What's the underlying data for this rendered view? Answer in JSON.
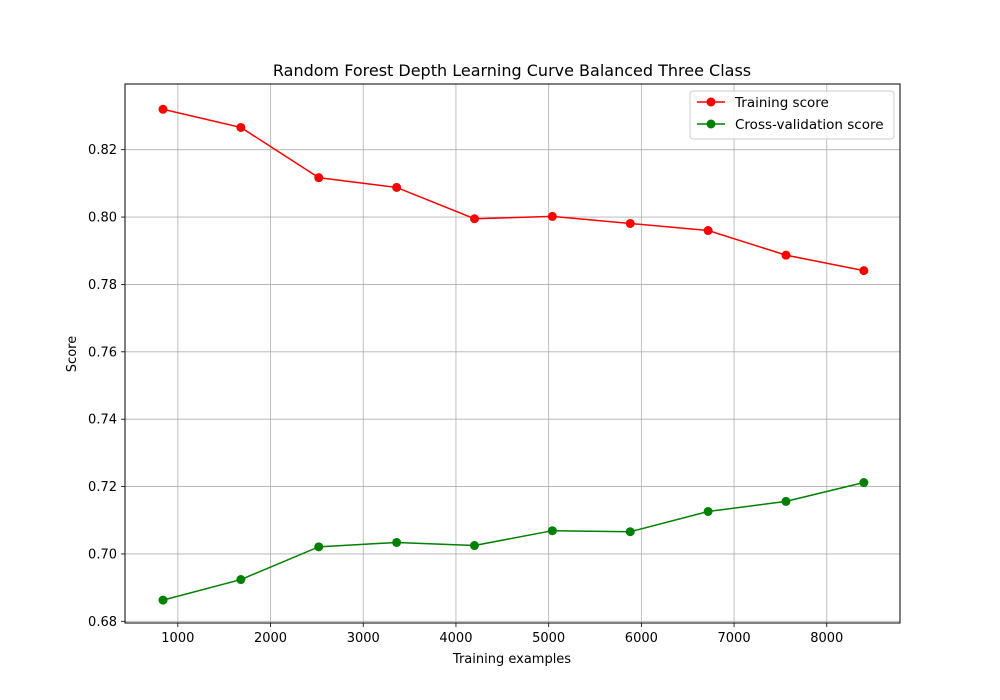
{
  "chart_data": {
    "type": "line",
    "title": "Random Forest Depth Learning Curve Balanced Three Class",
    "xlabel": "Training examples",
    "ylabel": "Score",
    "xlim": [
      430,
      8790
    ],
    "ylim": [
      0.6795,
      0.8395
    ],
    "xticks": [
      1000,
      2000,
      3000,
      4000,
      5000,
      6000,
      7000,
      8000
    ],
    "yticks": [
      0.68,
      0.7,
      0.72,
      0.74,
      0.76,
      0.78,
      0.8,
      0.82
    ],
    "xtick_labels": [
      "1000",
      "2000",
      "3000",
      "4000",
      "5000",
      "6000",
      "7000",
      "8000"
    ],
    "ytick_labels": [
      "0.68",
      "0.70",
      "0.72",
      "0.74",
      "0.76",
      "0.78",
      "0.80",
      "0.82"
    ],
    "grid": true,
    "legend_position": "top-right",
    "x": [
      840,
      1680,
      2520,
      3360,
      4200,
      5040,
      5880,
      6720,
      7560,
      8400
    ],
    "series": [
      {
        "name": "Training score",
        "color": "#ff0000",
        "values": [
          0.832,
          0.8266,
          0.8117,
          0.8088,
          0.7995,
          0.8002,
          0.7981,
          0.796,
          0.7887,
          0.7841
        ]
      },
      {
        "name": "Cross-validation score",
        "color": "#008000",
        "values": [
          0.6863,
          0.6924,
          0.7021,
          0.7034,
          0.7025,
          0.7069,
          0.7066,
          0.7126,
          0.7156,
          0.7212
        ]
      }
    ]
  }
}
